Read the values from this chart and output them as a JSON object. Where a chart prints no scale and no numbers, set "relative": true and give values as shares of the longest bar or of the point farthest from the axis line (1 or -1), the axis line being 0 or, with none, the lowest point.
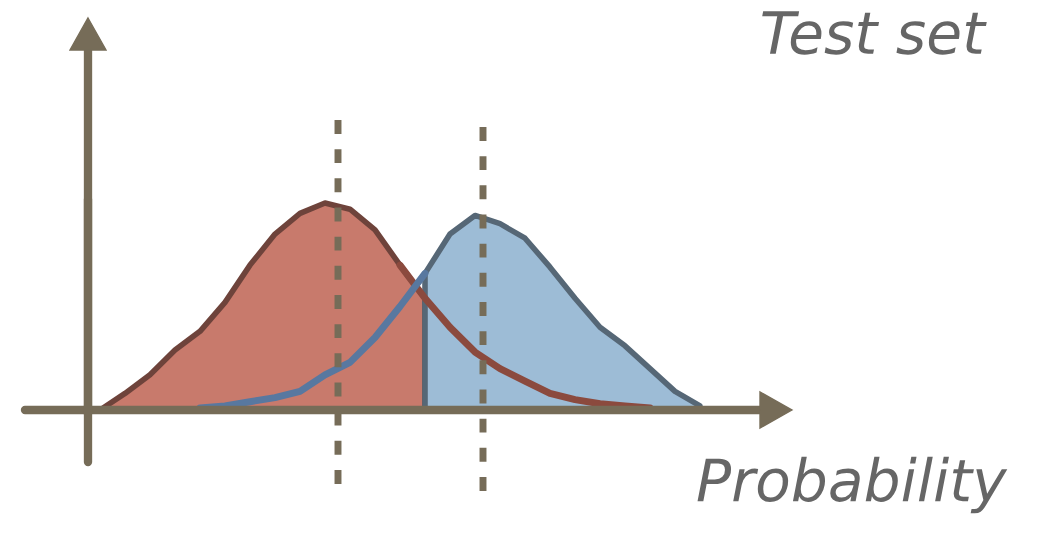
{
  "chart_data": {
    "type": "area",
    "title": "Test set",
    "xlabel": "Probability",
    "relative": true,
    "categories": [
      null,
      null,
      null,
      null,
      null,
      null,
      null,
      null,
      null,
      null,
      null,
      null,
      null,
      null,
      null,
      null,
      null,
      null,
      null,
      null,
      null,
      null,
      null,
      null,
      null
    ],
    "series": [
      {
        "color": "#c87a6c",
        "values": [
          0,
          0.08,
          0.17,
          0.29,
          0.38,
          0.52,
          0.7,
          0.85,
          0.95,
          1,
          0.97,
          0.87,
          0.7,
          0.54,
          null,
          null,
          null,
          null,
          null,
          null,
          null,
          null,
          null,
          null,
          null
        ]
      },
      {
        "color": "#9dbcd6",
        "values": [
          null,
          null,
          null,
          null,
          null,
          null,
          null,
          null,
          null,
          null,
          null,
          null,
          null,
          0.66,
          0.85,
          0.94,
          0.9,
          0.83,
          0.69,
          0.54,
          0.4,
          0.31,
          0.2,
          0.09,
          0.02
        ]
      },
      {
        "type": "line",
        "color": "#8b4a3e",
        "values": [
          null,
          null,
          null,
          null,
          null,
          null,
          null,
          null,
          null,
          null,
          null,
          null,
          0.7,
          0.54,
          0.4,
          0.28,
          0.2,
          0.14,
          0.08,
          0.05,
          0.03,
          0.02,
          0.01,
          null,
          null
        ]
      },
      {
        "type": "line",
        "color": "#5878a0",
        "values": [
          null,
          null,
          null,
          null,
          0.01,
          0.02,
          0.04,
          0.06,
          0.09,
          0.17,
          0.23,
          0.35,
          0.5,
          0.66,
          null,
          null,
          null,
          null,
          null,
          null,
          null,
          null,
          null,
          null,
          null
        ]
      }
    ],
    "legend": false
  }
}
